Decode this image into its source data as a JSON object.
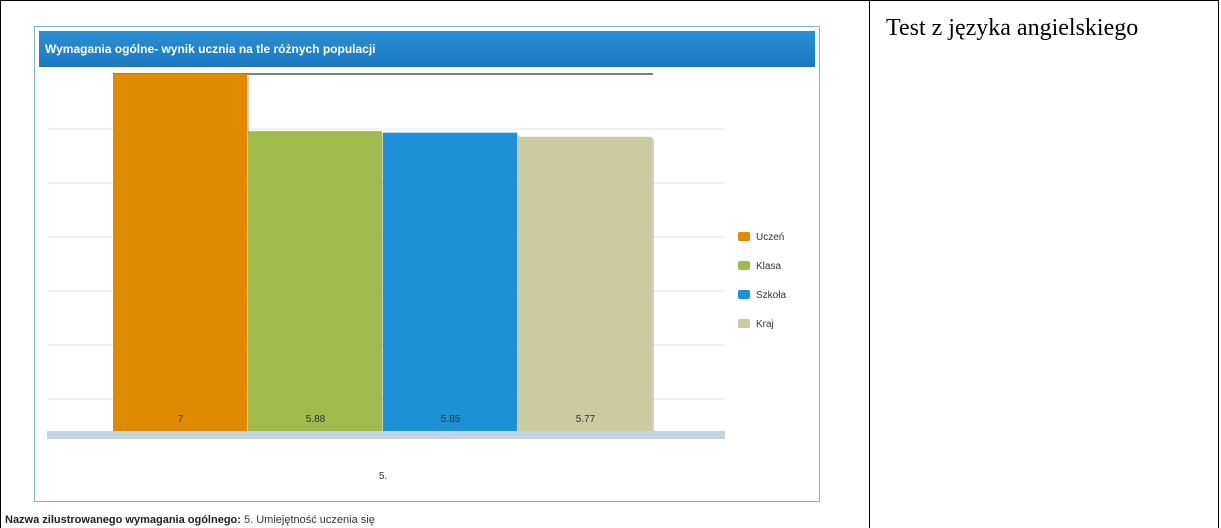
{
  "right_title": "Test z języka angielskiego",
  "footer": {
    "label": "Nazwa zilustrowanego wymagania ogólnego:",
    "value": "5. Umiejętność uczenia się"
  },
  "chart_data": {
    "type": "bar",
    "title": "Wymagania ogólne- wynik ucznia na tle różnych populacji",
    "categories": [
      "5."
    ],
    "series": [
      {
        "name": "Uczeń",
        "values": [
          7
        ],
        "color": "#e08a00"
      },
      {
        "name": "Klasa",
        "values": [
          5.88
        ],
        "color": "#a0ba4e"
      },
      {
        "name": "Szkoła",
        "values": [
          5.85
        ],
        "color": "#1e90d8"
      },
      {
        "name": "Kraj",
        "values": [
          5.77
        ],
        "color": "#cccaa0"
      }
    ],
    "data_labels": [
      "7",
      "5.88",
      "5.85",
      "5.77"
    ],
    "ylim": [
      0,
      7
    ],
    "grid": true,
    "legend": "right"
  }
}
